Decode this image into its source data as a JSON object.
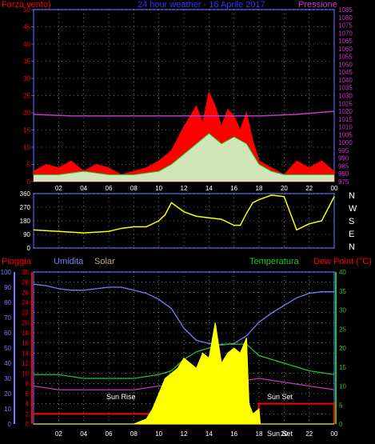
{
  "chart_data": [
    {
      "type": "line",
      "title": "24 hour weather - 16 Aprile 2017",
      "ylabel": "Forza vento",
      "y2label": "Pressione",
      "ylim": [
        0,
        50
      ],
      "y2lim": [
        975,
        1085
      ],
      "yticks": [
        0,
        5,
        10,
        15,
        20,
        25,
        30,
        35,
        40,
        45,
        50
      ],
      "y2ticks": [
        975,
        980,
        985,
        990,
        995,
        1000,
        1005,
        1010,
        1015,
        1020,
        1025,
        1030,
        1035,
        1040,
        1045,
        1050,
        1055,
        1060,
        1065,
        1070,
        1075,
        1080,
        1085
      ],
      "grid": true,
      "series": [
        {
          "key": "gust",
          "x": [
            0,
            1,
            2,
            3,
            4,
            5,
            6,
            7,
            8,
            9,
            10,
            11,
            12,
            12.5,
            13,
            13.5,
            14,
            14.5,
            15,
            15.5,
            16,
            16.5,
            17,
            17.5,
            18,
            18.5,
            19,
            20,
            21,
            22,
            23,
            24
          ],
          "values": [
            3,
            5,
            4,
            6,
            3,
            5,
            4,
            2,
            3,
            4,
            6,
            9,
            16,
            19,
            22,
            17,
            26,
            22,
            16,
            21,
            19,
            15,
            20,
            12,
            6,
            5,
            4,
            2,
            6,
            4,
            6,
            3
          ]
        },
        {
          "key": "average",
          "x": [
            0,
            2,
            4,
            6,
            8,
            10,
            11,
            12,
            13,
            14,
            15,
            16,
            17,
            18,
            19,
            20,
            22,
            24
          ],
          "values": [
            2,
            2,
            3,
            2,
            2,
            3,
            5,
            8,
            11,
            14,
            11,
            13,
            11,
            5,
            3,
            2,
            2,
            2
          ]
        },
        {
          "key": "pressure",
          "x": [
            0,
            3,
            6,
            9,
            12,
            15,
            18,
            21,
            24
          ],
          "values": [
            1018,
            1017,
            1017,
            1017,
            1017,
            1017,
            1017,
            1018,
            1020
          ]
        }
      ],
      "xticks": [
        "02",
        "04",
        "06",
        "08",
        "10",
        "12",
        "14",
        "16",
        "18",
        "20",
        "22",
        "00"
      ]
    },
    {
      "type": "scatter",
      "ylim": [
        0,
        360
      ],
      "yticks": [
        0,
        90,
        180,
        270,
        360
      ],
      "right_labels": [
        "N",
        "W",
        "S",
        "E",
        "N"
      ],
      "series": [
        {
          "key": "direction",
          "x": [
            0,
            2,
            4,
            6,
            6.5,
            7,
            8,
            9,
            10,
            10.5,
            11,
            12,
            13,
            14,
            15,
            16,
            16.5,
            17,
            17.5,
            18,
            19,
            20,
            21,
            22,
            23,
            24
          ],
          "values": [
            120,
            110,
            100,
            110,
            120,
            130,
            140,
            140,
            180,
            220,
            300,
            240,
            210,
            200,
            190,
            150,
            150,
            230,
            300,
            320,
            350,
            340,
            120,
            160,
            180,
            340
          ]
        }
      ],
      "xticks": [
        "02",
        "04",
        "06",
        "08",
        "10",
        "12",
        "14",
        "16",
        "18",
        "20",
        "22",
        "00"
      ]
    },
    {
      "type": "line",
      "labels": {
        "rain": "Pioggia",
        "humidity": "Umidita",
        "solar": "Solar",
        "temperature": "Temperatura",
        "dewpoint": "Dew Point (°C)"
      },
      "humidity_axis": [
        0,
        10,
        20,
        30,
        40,
        50,
        60,
        70,
        80,
        90,
        100
      ],
      "rain_axis": [
        0,
        2,
        4,
        6,
        8,
        10,
        12,
        14,
        16,
        18,
        20,
        22,
        24,
        26,
        28,
        30
      ],
      "temp_axis": [
        0,
        5,
        10,
        15,
        20,
        25,
        30,
        35,
        40
      ],
      "series": [
        {
          "key": "humidity",
          "x": [
            0,
            1,
            2,
            3,
            4,
            5,
            6,
            7,
            8,
            9,
            10,
            11,
            12,
            13,
            14,
            15,
            16,
            17,
            18,
            19,
            20,
            21,
            22,
            23,
            24
          ],
          "values": [
            92,
            91,
            89,
            88,
            88,
            89,
            90,
            90,
            88,
            86,
            82,
            76,
            63,
            55,
            53,
            52,
            53,
            58,
            67,
            73,
            78,
            83,
            86,
            87,
            87
          ]
        },
        {
          "key": "temperature",
          "x": [
            0,
            2,
            4,
            6,
            8,
            10,
            11,
            12,
            13,
            14,
            15,
            16,
            17,
            18,
            19,
            20,
            21,
            22,
            24
          ],
          "values": [
            13,
            13,
            12,
            12,
            12,
            13,
            14,
            17,
            19,
            20,
            21,
            21,
            21,
            18,
            17,
            16,
            15,
            14,
            13
          ]
        },
        {
          "key": "dewpoint",
          "x": [
            0,
            2,
            4,
            6,
            8,
            10,
            12,
            14,
            16,
            18,
            20,
            22,
            24
          ],
          "values": [
            10,
            9,
            9,
            9,
            9,
            10,
            10,
            10,
            11,
            12,
            11,
            10,
            9
          ]
        },
        {
          "key": "rain",
          "x": [
            0,
            17.9,
            18,
            24
          ],
          "values": [
            2,
            2,
            4,
            4
          ]
        },
        {
          "key": "solar",
          "x": [
            0,
            2,
            4,
            6,
            8,
            9,
            9.5,
            10,
            10.5,
            11,
            11.5,
            12,
            12.5,
            13,
            13.5,
            14,
            14.5,
            15,
            15.5,
            16,
            16.5,
            17,
            17.2,
            17.5,
            18,
            18.1,
            19,
            24
          ],
          "values": [
            0,
            0,
            0,
            0,
            0,
            1,
            3,
            6,
            9,
            10,
            11,
            13,
            12,
            11,
            14,
            13,
            20,
            12,
            14,
            15,
            14,
            17,
            4,
            2,
            3,
            0,
            0,
            0
          ]
        }
      ],
      "annotations": [
        "Sun Rise",
        "Sun Set",
        "Sun Set"
      ],
      "xticks": [
        "02",
        "04",
        "06",
        "08",
        "10",
        "12",
        "14",
        "16",
        "18",
        "20",
        "22",
        "00"
      ],
      "colors": {
        "humidity": "#7b7bff",
        "temperature": "#22c322",
        "dewpoint": "#c535c5",
        "rain": "#ff0000",
        "solar": "#ffff00"
      }
    }
  ],
  "colors": {
    "wind_gust": "#ff0000",
    "wind_avg": "#ccffcc",
    "pressure": "#cc33cc",
    "axis": "#3c50c8",
    "grid": "#ffffff",
    "label_red": "#ff0000",
    "label_blue": "#3333ff",
    "label_magenta": "#cc33cc",
    "label_green": "#22c322",
    "label_tan": "#bbaa88"
  }
}
